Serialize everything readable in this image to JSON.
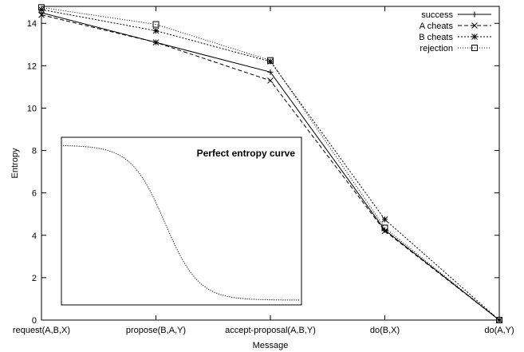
{
  "chart_data": {
    "type": "line",
    "title": "",
    "xlabel": "Message",
    "ylabel": "Entropy",
    "ylim": [
      0,
      14.8
    ],
    "yticks": [
      0,
      2,
      4,
      6,
      8,
      10,
      12,
      14
    ],
    "ytick_labels": [
      "0",
      "2",
      "4",
      "6",
      "8",
      "10",
      "12",
      "14"
    ],
    "categories": [
      "request(A,B,X)",
      "propose(B,A,Y)",
      "accept-proposal(A,B,Y)",
      "do(B,X)",
      "do(A,Y)"
    ],
    "grid": false,
    "legend_position": "top-right",
    "series": [
      {
        "name": "success",
        "marker": "plus",
        "dash": "solid",
        "values": [
          14.5,
          13.1,
          11.7,
          4.25,
          0.0
        ]
      },
      {
        "name": "A cheats",
        "marker": "x",
        "dash": "dashed",
        "values": [
          14.4,
          13.1,
          11.3,
          4.2,
          0.0
        ]
      },
      {
        "name": "B cheats",
        "marker": "star",
        "dash": "dotted",
        "values": [
          14.65,
          13.65,
          12.2,
          4.75,
          0.0
        ]
      },
      {
        "name": "rejection",
        "marker": "square",
        "dash": "dotted2",
        "values": [
          14.75,
          13.95,
          12.25,
          4.35,
          0.0
        ]
      }
    ],
    "inset": {
      "title": "Perfect entropy curve",
      "type": "line",
      "curve": "sigmoid-descending",
      "high": 1.0,
      "low": 0.0,
      "midpoint": 0.43,
      "steepness": 14
    }
  }
}
